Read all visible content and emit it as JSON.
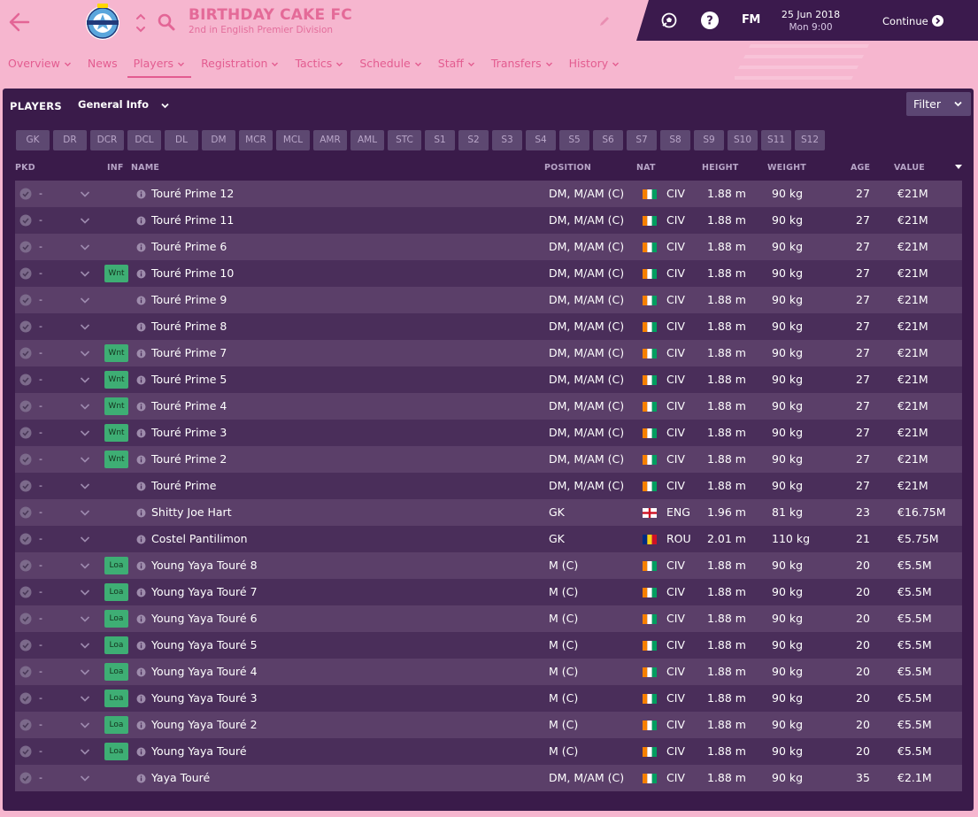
{
  "club": {
    "name": "BIRTHDAY CAKE FC",
    "subtitle": "2nd in English Premier Division"
  },
  "topbar": {
    "fm_label": "FM",
    "date": "25 Jun 2018",
    "time": "Mon 9:00",
    "continue_label": "Continue"
  },
  "nav": [
    {
      "label": "Overview",
      "dropdown": true
    },
    {
      "label": "News",
      "dropdown": false
    },
    {
      "label": "Players",
      "dropdown": true,
      "active": true
    },
    {
      "label": "Registration",
      "dropdown": true
    },
    {
      "label": "Tactics",
      "dropdown": true
    },
    {
      "label": "Schedule",
      "dropdown": true
    },
    {
      "label": "Staff",
      "dropdown": true
    },
    {
      "label": "Transfers",
      "dropdown": true
    },
    {
      "label": "History",
      "dropdown": true
    }
  ],
  "panel": {
    "title": "PLAYERS",
    "view": "General Info",
    "filter_label": "Filter"
  },
  "positions": [
    "GK",
    "DR",
    "DCR",
    "DCL",
    "DL",
    "DM",
    "MCR",
    "MCL",
    "AMR",
    "AML",
    "STC",
    "S1",
    "S2",
    "S3",
    "S4",
    "S5",
    "S6",
    "S7",
    "S8",
    "S9",
    "S10",
    "S11",
    "S12"
  ],
  "columns": {
    "pkd": "PKD",
    "inf": "INF",
    "name": "NAME",
    "position": "POSITION",
    "nat": "NAT",
    "height": "HEIGHT",
    "weight": "WEIGHT",
    "age": "AGE",
    "value": "VALUE"
  },
  "colors": {
    "accent": "#e35c90",
    "background": "#f6b6cf",
    "panel": "#3a1b4a",
    "topbar": "#3b1a4d",
    "status_green": "#3eae74"
  },
  "players": [
    {
      "pkd": "-",
      "inf": "",
      "name": "Touré Prime 12",
      "position": "DM, M/AM (C)",
      "nat": "CIV",
      "height": "1.88 m",
      "weight": "90 kg",
      "age": "27",
      "value": "€21M"
    },
    {
      "pkd": "-",
      "inf": "",
      "name": "Touré Prime 11",
      "position": "DM, M/AM (C)",
      "nat": "CIV",
      "height": "1.88 m",
      "weight": "90 kg",
      "age": "27",
      "value": "€21M"
    },
    {
      "pkd": "-",
      "inf": "",
      "name": "Touré Prime 6",
      "position": "DM, M/AM (C)",
      "nat": "CIV",
      "height": "1.88 m",
      "weight": "90 kg",
      "age": "27",
      "value": "€21M"
    },
    {
      "pkd": "-",
      "inf": "Wnt",
      "name": "Touré Prime 10",
      "position": "DM, M/AM (C)",
      "nat": "CIV",
      "height": "1.88 m",
      "weight": "90 kg",
      "age": "27",
      "value": "€21M"
    },
    {
      "pkd": "-",
      "inf": "",
      "name": "Touré Prime 9",
      "position": "DM, M/AM (C)",
      "nat": "CIV",
      "height": "1.88 m",
      "weight": "90 kg",
      "age": "27",
      "value": "€21M"
    },
    {
      "pkd": "-",
      "inf": "",
      "name": "Touré Prime 8",
      "position": "DM, M/AM (C)",
      "nat": "CIV",
      "height": "1.88 m",
      "weight": "90 kg",
      "age": "27",
      "value": "€21M"
    },
    {
      "pkd": "-",
      "inf": "Wnt",
      "name": "Touré Prime 7",
      "position": "DM, M/AM (C)",
      "nat": "CIV",
      "height": "1.88 m",
      "weight": "90 kg",
      "age": "27",
      "value": "€21M"
    },
    {
      "pkd": "-",
      "inf": "Wnt",
      "name": "Touré Prime 5",
      "position": "DM, M/AM (C)",
      "nat": "CIV",
      "height": "1.88 m",
      "weight": "90 kg",
      "age": "27",
      "value": "€21M"
    },
    {
      "pkd": "-",
      "inf": "Wnt",
      "name": "Touré Prime 4",
      "position": "DM, M/AM (C)",
      "nat": "CIV",
      "height": "1.88 m",
      "weight": "90 kg",
      "age": "27",
      "value": "€21M"
    },
    {
      "pkd": "-",
      "inf": "Wnt",
      "name": "Touré Prime 3",
      "position": "DM, M/AM (C)",
      "nat": "CIV",
      "height": "1.88 m",
      "weight": "90 kg",
      "age": "27",
      "value": "€21M"
    },
    {
      "pkd": "-",
      "inf": "Wnt",
      "name": "Touré Prime 2",
      "position": "DM, M/AM (C)",
      "nat": "CIV",
      "height": "1.88 m",
      "weight": "90 kg",
      "age": "27",
      "value": "€21M"
    },
    {
      "pkd": "-",
      "inf": "",
      "name": "Touré Prime",
      "position": "DM, M/AM (C)",
      "nat": "CIV",
      "height": "1.88 m",
      "weight": "90 kg",
      "age": "27",
      "value": "€21M"
    },
    {
      "pkd": "-",
      "inf": "",
      "name": "Shitty Joe Hart",
      "position": "GK",
      "nat": "ENG",
      "height": "1.96 m",
      "weight": "81 kg",
      "age": "23",
      "value": "€16.75M"
    },
    {
      "pkd": "-",
      "inf": "",
      "name": "Costel Pantilimon",
      "position": "GK",
      "nat": "ROU",
      "height": "2.01 m",
      "weight": "110 kg",
      "age": "21",
      "value": "€5.75M"
    },
    {
      "pkd": "-",
      "inf": "Loa",
      "name": "Young Yaya Touré 8",
      "position": "M (C)",
      "nat": "CIV",
      "height": "1.88 m",
      "weight": "90 kg",
      "age": "20",
      "value": "€5.5M"
    },
    {
      "pkd": "-",
      "inf": "Loa",
      "name": "Young Yaya Touré 7",
      "position": "M (C)",
      "nat": "CIV",
      "height": "1.88 m",
      "weight": "90 kg",
      "age": "20",
      "value": "€5.5M"
    },
    {
      "pkd": "-",
      "inf": "Loa",
      "name": "Young Yaya Touré 6",
      "position": "M (C)",
      "nat": "CIV",
      "height": "1.88 m",
      "weight": "90 kg",
      "age": "20",
      "value": "€5.5M"
    },
    {
      "pkd": "-",
      "inf": "Loa",
      "name": "Young Yaya Touré 5",
      "position": "M (C)",
      "nat": "CIV",
      "height": "1.88 m",
      "weight": "90 kg",
      "age": "20",
      "value": "€5.5M"
    },
    {
      "pkd": "-",
      "inf": "Loa",
      "name": "Young Yaya Touré 4",
      "position": "M (C)",
      "nat": "CIV",
      "height": "1.88 m",
      "weight": "90 kg",
      "age": "20",
      "value": "€5.5M"
    },
    {
      "pkd": "-",
      "inf": "Loa",
      "name": "Young Yaya Touré 3",
      "position": "M (C)",
      "nat": "CIV",
      "height": "1.88 m",
      "weight": "90 kg",
      "age": "20",
      "value": "€5.5M"
    },
    {
      "pkd": "-",
      "inf": "Loa",
      "name": "Young Yaya Touré 2",
      "position": "M (C)",
      "nat": "CIV",
      "height": "1.88 m",
      "weight": "90 kg",
      "age": "20",
      "value": "€5.5M"
    },
    {
      "pkd": "-",
      "inf": "Loa",
      "name": "Young Yaya Touré",
      "position": "M (C)",
      "nat": "CIV",
      "height": "1.88 m",
      "weight": "90 kg",
      "age": "20",
      "value": "€5.5M"
    },
    {
      "pkd": "-",
      "inf": "",
      "name": "Yaya Touré",
      "position": "DM, M/AM (C)",
      "nat": "CIV",
      "height": "1.88 m",
      "weight": "90 kg",
      "age": "35",
      "value": "€2.1M"
    }
  ]
}
